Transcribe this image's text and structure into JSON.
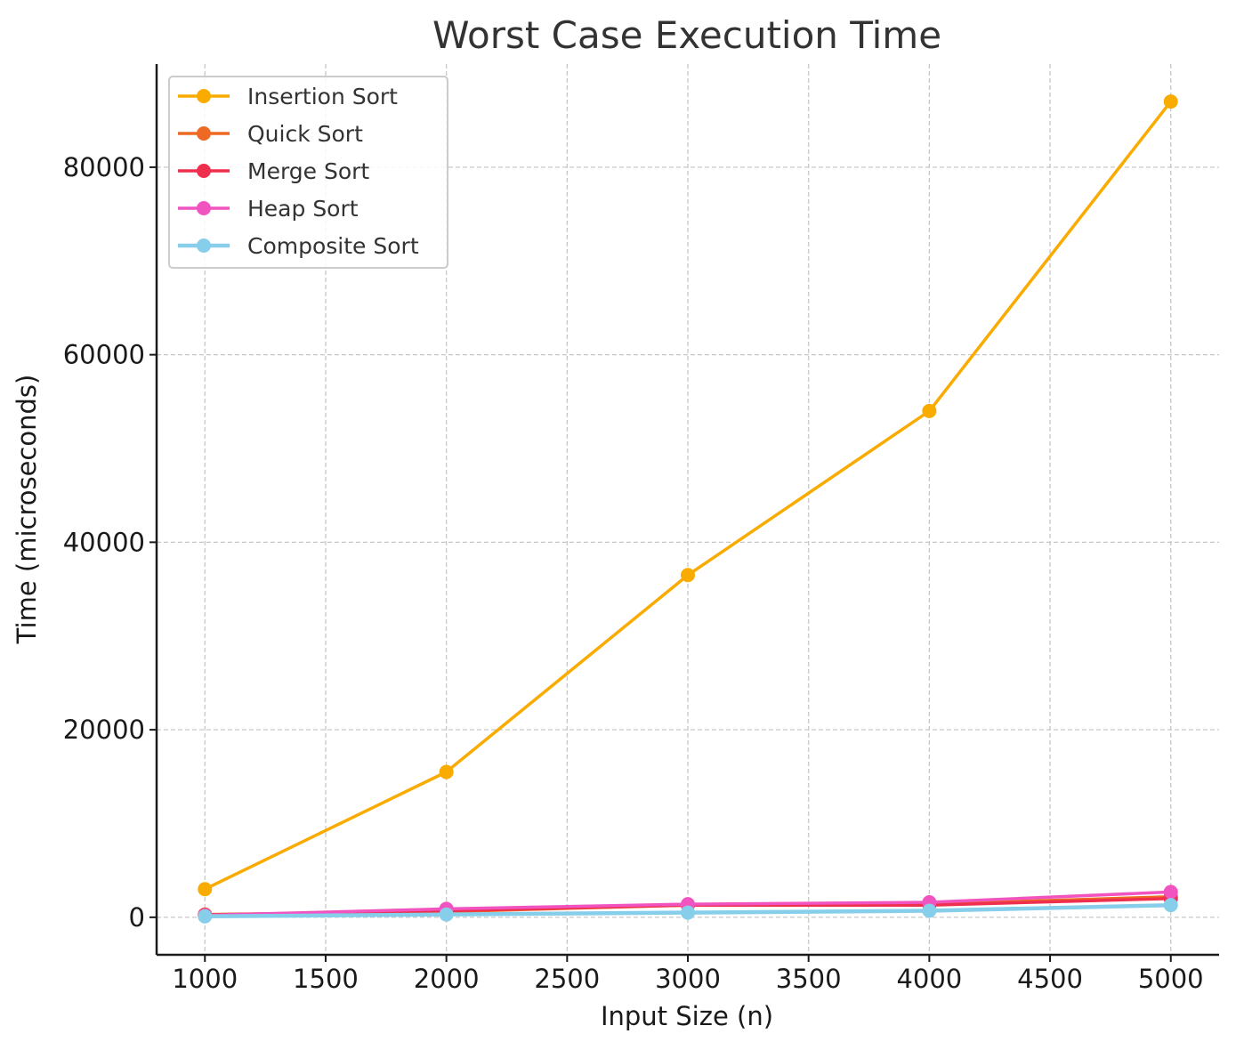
{
  "chart_data": {
    "type": "line",
    "title": "Worst Case Execution Time",
    "xlabel": "Input Size (n)",
    "ylabel": "Time (microseconds)",
    "x": [
      1000,
      2000,
      3000,
      4000,
      5000
    ],
    "xlim": [
      800,
      5200
    ],
    "ylim": [
      -4000,
      91000
    ],
    "xticks": [
      1000,
      1500,
      2000,
      2500,
      3000,
      3500,
      4000,
      4500,
      5000
    ],
    "yticks": [
      0,
      20000,
      40000,
      60000,
      80000
    ],
    "grid": true,
    "legend_position": "top-left",
    "series": [
      {
        "name": "Insertion Sort",
        "color": "#F9AB00",
        "values": [
          3000,
          15500,
          36500,
          54000,
          87000
        ]
      },
      {
        "name": "Quick Sort",
        "color": "#EE6A24",
        "values": [
          300,
          600,
          1300,
          1400,
          2200
        ]
      },
      {
        "name": "Merge Sort",
        "color": "#EF2F4E",
        "values": [
          250,
          700,
          1300,
          1300,
          2000
        ]
      },
      {
        "name": "Heap Sort",
        "color": "#F154C0",
        "values": [
          200,
          900,
          1400,
          1600,
          2700
        ]
      },
      {
        "name": "Composite Sort",
        "color": "#87CEEB",
        "values": [
          100,
          300,
          500,
          700,
          1300
        ]
      }
    ]
  }
}
